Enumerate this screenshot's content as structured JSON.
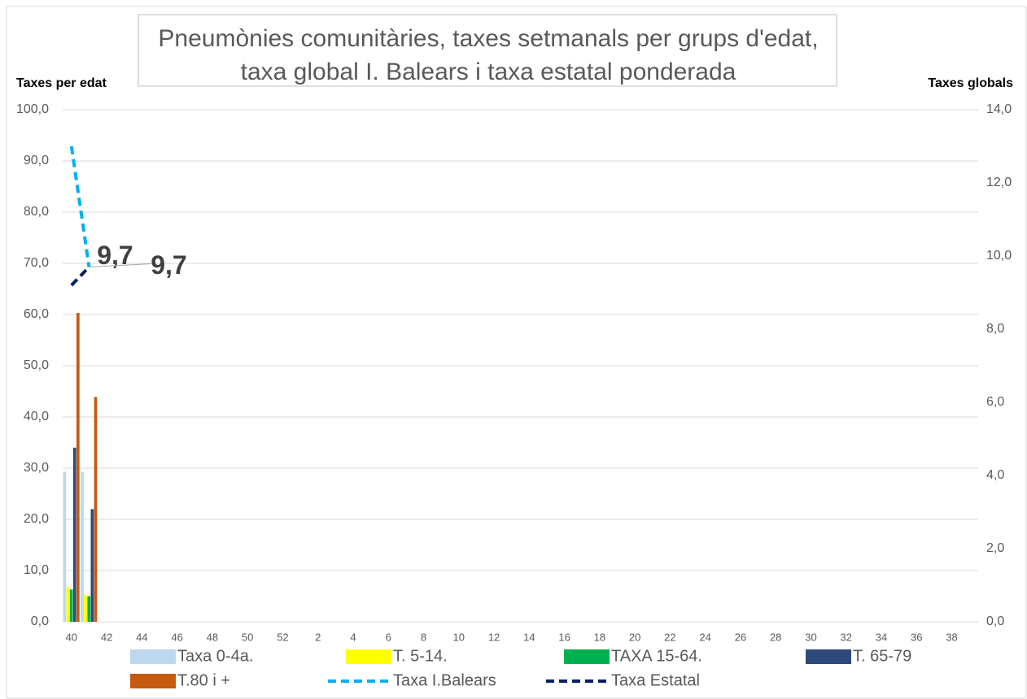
{
  "chart_data": {
    "type": "combo",
    "title": [
      "Pneumònies comunitàries, taxes setmanals per grups d'edat,",
      "taxa global I. Balears i taxa estatal ponderada"
    ],
    "y_label": "Taxes per edat",
    "y2_label": "Taxes globals",
    "categories": [
      "40",
      null,
      "42",
      null,
      "44",
      null,
      "46",
      null,
      "48",
      null,
      "50",
      null,
      "52",
      null,
      "2",
      null,
      "4",
      null,
      "6",
      null,
      "8",
      null,
      "10",
      null,
      "12",
      null,
      "14",
      null,
      "16",
      null,
      "18",
      null,
      "20",
      null,
      "22",
      null,
      "24",
      null,
      "26",
      null,
      "28",
      null,
      "30",
      null,
      "32",
      null,
      "34",
      null,
      "36",
      null,
      "38",
      null
    ],
    "ylim": [
      0,
      100
    ],
    "yticks": [
      {
        "value": 0,
        "label": "0,0"
      },
      {
        "value": 10,
        "label": "10,0"
      },
      {
        "value": 20,
        "label": "20,0"
      },
      {
        "value": 30,
        "label": "30,0"
      },
      {
        "value": 40,
        "label": "40,0"
      },
      {
        "value": 50,
        "label": "50,0"
      },
      {
        "value": 60,
        "label": "60,0"
      },
      {
        "value": 70,
        "label": "70,0"
      },
      {
        "value": 80,
        "label": "80,0"
      },
      {
        "value": 90,
        "label": "90,0"
      },
      {
        "value": 100,
        "label": "100,0"
      }
    ],
    "y2lim": [
      0,
      14
    ],
    "y2ticks": [
      {
        "value": 0,
        "label": "0,0"
      },
      {
        "value": 2,
        "label": "2,0"
      },
      {
        "value": 4,
        "label": "4,0"
      },
      {
        "value": 6,
        "label": "6,0"
      },
      {
        "value": 8,
        "label": "8,0"
      },
      {
        "value": 10,
        "label": "10,0"
      },
      {
        "value": 12,
        "label": "12,0"
      },
      {
        "value": 14,
        "label": "14,0"
      }
    ],
    "grid": true,
    "series": [
      {
        "name": "Taxa 0-4a.",
        "type": "bar",
        "color": "#bdd7ee",
        "values": [
          29.3,
          29.3,
          null,
          null,
          null,
          null,
          null,
          null,
          null,
          null,
          null,
          null,
          null,
          null,
          null,
          null,
          null,
          null,
          null,
          null,
          null,
          null,
          null,
          null,
          null,
          null,
          null,
          null,
          null,
          null,
          null,
          null,
          null,
          null,
          null,
          null,
          null,
          null,
          null,
          null,
          null,
          null,
          null,
          null,
          null,
          null,
          null,
          null,
          null,
          null,
          null,
          null
        ]
      },
      {
        "name": "T. 5-14.",
        "type": "bar",
        "color": "#ffff00",
        "values": [
          6.8,
          5.2,
          null,
          null,
          null,
          null,
          null,
          null,
          null,
          null,
          null,
          null,
          null,
          null,
          null,
          null,
          null,
          null,
          null,
          null,
          null,
          null,
          null,
          null,
          null,
          null,
          null,
          null,
          null,
          null,
          null,
          null,
          null,
          null,
          null,
          null,
          null,
          null,
          null,
          null,
          null,
          null,
          null,
          null,
          null,
          null,
          null,
          null,
          null,
          null,
          null,
          null
        ]
      },
      {
        "name": "TAXA 15-64.",
        "type": "bar",
        "color": "#00b050",
        "values": [
          6.3,
          5.0,
          null,
          null,
          null,
          null,
          null,
          null,
          null,
          null,
          null,
          null,
          null,
          null,
          null,
          null,
          null,
          null,
          null,
          null,
          null,
          null,
          null,
          null,
          null,
          null,
          null,
          null,
          null,
          null,
          null,
          null,
          null,
          null,
          null,
          null,
          null,
          null,
          null,
          null,
          null,
          null,
          null,
          null,
          null,
          null,
          null,
          null,
          null,
          null,
          null,
          null
        ]
      },
      {
        "name": "T. 65-79",
        "type": "bar",
        "color": "#2e4a7a",
        "values": [
          34.0,
          22.0,
          null,
          null,
          null,
          null,
          null,
          null,
          null,
          null,
          null,
          null,
          null,
          null,
          null,
          null,
          null,
          null,
          null,
          null,
          null,
          null,
          null,
          null,
          null,
          null,
          null,
          null,
          null,
          null,
          null,
          null,
          null,
          null,
          null,
          null,
          null,
          null,
          null,
          null,
          null,
          null,
          null,
          null,
          null,
          null,
          null,
          null,
          null,
          null,
          null,
          null
        ]
      },
      {
        "name": "T.80 i +",
        "type": "bar",
        "color": "#c55a11",
        "values": [
          60.3,
          43.9,
          null,
          null,
          null,
          null,
          null,
          null,
          null,
          null,
          null,
          null,
          null,
          null,
          null,
          null,
          null,
          null,
          null,
          null,
          null,
          null,
          null,
          null,
          null,
          null,
          null,
          null,
          null,
          null,
          null,
          null,
          null,
          null,
          null,
          null,
          null,
          null,
          null,
          null,
          null,
          null,
          null,
          null,
          null,
          null,
          null,
          null,
          null,
          null,
          null,
          null
        ]
      },
      {
        "name": "Taxa I.Balears",
        "type": "line",
        "axis": "y2",
        "line_style": "dashed",
        "color": "#00b0f0",
        "values": [
          13.0,
          9.7,
          null,
          null,
          null,
          null,
          null,
          null,
          null,
          null,
          null,
          null,
          null,
          null,
          null,
          null,
          null,
          null,
          null,
          null,
          null,
          null,
          null,
          null,
          null,
          null,
          null,
          null,
          null,
          null,
          null,
          null,
          null,
          null,
          null,
          null,
          null,
          null,
          null,
          null,
          null,
          null,
          null,
          null,
          null,
          null,
          null,
          null,
          null,
          null,
          null,
          null
        ],
        "value_labels": [
          null,
          "9,7",
          null,
          null,
          null,
          null,
          null,
          null,
          null,
          null,
          null,
          null,
          null,
          null,
          null,
          null,
          null,
          null,
          null,
          null,
          null,
          null,
          null,
          null,
          null,
          null,
          null,
          null,
          null,
          null,
          null,
          null,
          null,
          null,
          null,
          null,
          null,
          null,
          null,
          null,
          null,
          null,
          null,
          null,
          null,
          null,
          null,
          null,
          null,
          null,
          null,
          null
        ]
      },
      {
        "name": "Taxa Estatal",
        "type": "line",
        "axis": "y2",
        "line_style": "dashed",
        "color": "#002060",
        "values": [
          9.2,
          9.7,
          null,
          null,
          null,
          null,
          null,
          null,
          null,
          null,
          null,
          null,
          null,
          null,
          null,
          null,
          null,
          null,
          null,
          null,
          null,
          null,
          null,
          null,
          null,
          null,
          null,
          null,
          null,
          null,
          null,
          null,
          null,
          null,
          null,
          null,
          null,
          null,
          null,
          null,
          null,
          null,
          null,
          null,
          null,
          null,
          null,
          null,
          null,
          null,
          null,
          null
        ],
        "value_labels": [
          null,
          "9,7",
          null,
          null,
          null,
          null,
          null,
          null,
          null,
          null,
          null,
          null,
          null,
          null,
          null,
          null,
          null,
          null,
          null,
          null,
          null,
          null,
          null,
          null,
          null,
          null,
          null,
          null,
          null,
          null,
          null,
          null,
          null,
          null,
          null,
          null,
          null,
          null,
          null,
          null,
          null,
          null,
          null,
          null,
          null,
          null,
          null,
          null,
          null,
          null,
          null,
          null
        ]
      }
    ]
  }
}
